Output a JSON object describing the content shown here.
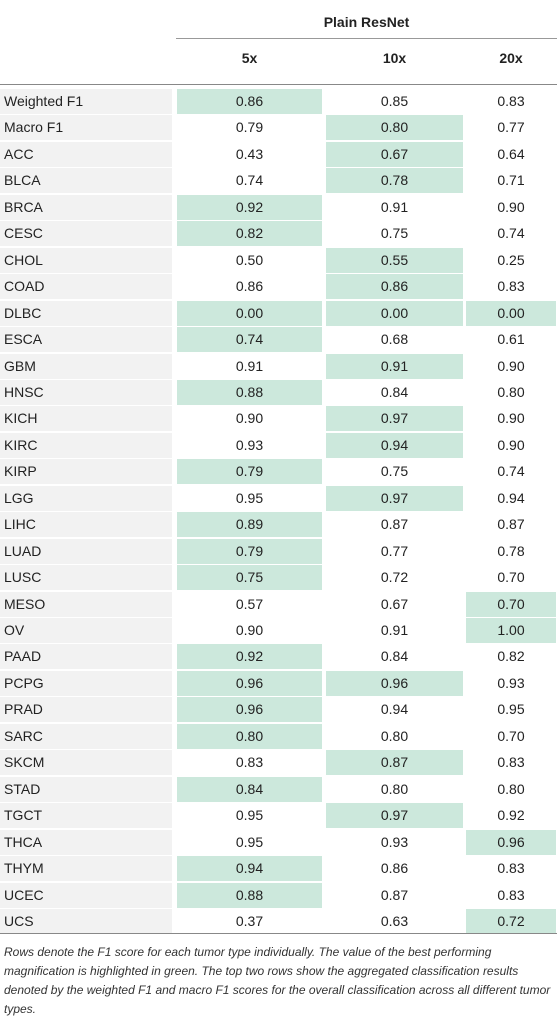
{
  "table": {
    "group_header": "Plain ResNet",
    "columns": [
      "5x",
      "10x",
      "20x"
    ],
    "rows": [
      {
        "label": "Weighted F1",
        "values": [
          "0.86",
          "0.85",
          "0.83"
        ],
        "best": [
          0
        ]
      },
      {
        "label": "Macro F1",
        "values": [
          "0.79",
          "0.80",
          "0.77"
        ],
        "best": [
          1
        ]
      },
      {
        "label": "ACC",
        "values": [
          "0.43",
          "0.67",
          "0.64"
        ],
        "best": [
          1
        ]
      },
      {
        "label": "BLCA",
        "values": [
          "0.74",
          "0.78",
          "0.71"
        ],
        "best": [
          1
        ]
      },
      {
        "label": "BRCA",
        "values": [
          "0.92",
          "0.91",
          "0.90"
        ],
        "best": [
          0
        ]
      },
      {
        "label": "CESC",
        "values": [
          "0.82",
          "0.75",
          "0.74"
        ],
        "best": [
          0
        ]
      },
      {
        "label": "CHOL",
        "values": [
          "0.50",
          "0.55",
          "0.25"
        ],
        "best": [
          1
        ]
      },
      {
        "label": "COAD",
        "values": [
          "0.86",
          "0.86",
          "0.83"
        ],
        "best": [
          1
        ]
      },
      {
        "label": "DLBC",
        "values": [
          "0.00",
          "0.00",
          "0.00"
        ],
        "best": [
          0,
          1,
          2
        ]
      },
      {
        "label": "ESCA",
        "values": [
          "0.74",
          "0.68",
          "0.61"
        ],
        "best": [
          0
        ]
      },
      {
        "label": "GBM",
        "values": [
          "0.91",
          "0.91",
          "0.90"
        ],
        "best": [
          1
        ]
      },
      {
        "label": "HNSC",
        "values": [
          "0.88",
          "0.84",
          "0.80"
        ],
        "best": [
          0
        ]
      },
      {
        "label": "KICH",
        "values": [
          "0.90",
          "0.97",
          "0.90"
        ],
        "best": [
          1
        ]
      },
      {
        "label": "KIRC",
        "values": [
          "0.93",
          "0.94",
          "0.90"
        ],
        "best": [
          1
        ]
      },
      {
        "label": "KIRP",
        "values": [
          "0.79",
          "0.75",
          "0.74"
        ],
        "best": [
          0
        ]
      },
      {
        "label": "LGG",
        "values": [
          "0.95",
          "0.97",
          "0.94"
        ],
        "best": [
          1
        ]
      },
      {
        "label": "LIHC",
        "values": [
          "0.89",
          "0.87",
          "0.87"
        ],
        "best": [
          0
        ]
      },
      {
        "label": "LUAD",
        "values": [
          "0.79",
          "0.77",
          "0.78"
        ],
        "best": [
          0
        ]
      },
      {
        "label": "LUSC",
        "values": [
          "0.75",
          "0.72",
          "0.70"
        ],
        "best": [
          0
        ]
      },
      {
        "label": "MESO",
        "values": [
          "0.57",
          "0.67",
          "0.70"
        ],
        "best": [
          2
        ]
      },
      {
        "label": "OV",
        "values": [
          "0.90",
          "0.91",
          "1.00"
        ],
        "best": [
          2
        ]
      },
      {
        "label": "PAAD",
        "values": [
          "0.92",
          "0.84",
          "0.82"
        ],
        "best": [
          0
        ]
      },
      {
        "label": "PCPG",
        "values": [
          "0.96",
          "0.96",
          "0.93"
        ],
        "best": [
          0,
          1
        ]
      },
      {
        "label": "PRAD",
        "values": [
          "0.96",
          "0.94",
          "0.95"
        ],
        "best": [
          0
        ]
      },
      {
        "label": "SARC",
        "values": [
          "0.80",
          "0.80",
          "0.70"
        ],
        "best": [
          0
        ]
      },
      {
        "label": "SKCM",
        "values": [
          "0.83",
          "0.87",
          "0.83"
        ],
        "best": [
          1
        ]
      },
      {
        "label": "STAD",
        "values": [
          "0.84",
          "0.80",
          "0.80"
        ],
        "best": [
          0
        ]
      },
      {
        "label": "TGCT",
        "values": [
          "0.95",
          "0.97",
          "0.92"
        ],
        "best": [
          1
        ]
      },
      {
        "label": "THCA",
        "values": [
          "0.95",
          "0.93",
          "0.96"
        ],
        "best": [
          2
        ]
      },
      {
        "label": "THYM",
        "values": [
          "0.94",
          "0.86",
          "0.83"
        ],
        "best": [
          0
        ]
      },
      {
        "label": "UCEC",
        "values": [
          "0.88",
          "0.87",
          "0.83"
        ],
        "best": [
          0
        ]
      },
      {
        "label": "UCS",
        "values": [
          "0.37",
          "0.63",
          "0.72"
        ],
        "best": [
          2
        ]
      }
    ]
  },
  "caption": "Rows denote the F1 score for each tumor type individually. The value of the best performing magnification is highlighted in green. The top two rows show the aggregated classification results denoted by the weighted F1 and macro F1 scores for the overall classification across all different tumor types.",
  "colors": {
    "highlight": "#cce8dc",
    "label_bg": "#f2f2f2"
  }
}
